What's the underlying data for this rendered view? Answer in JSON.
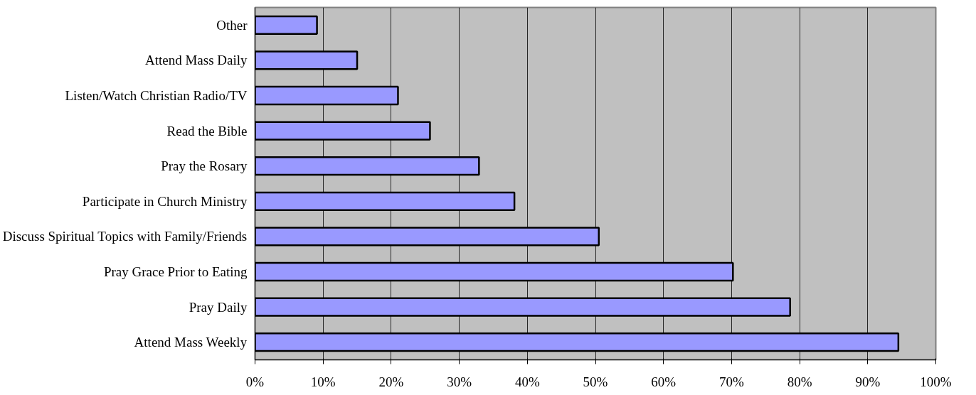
{
  "chart_data": {
    "type": "bar",
    "orientation": "horizontal",
    "categories": [
      "Other",
      "Attend Mass Daily",
      "Listen/Watch Christian Radio/TV",
      "Read the Bible",
      "Pray the Rosary",
      "Participate in Church Ministry",
      "Discuss Spiritual Topics with Family/Friends",
      "Pray Grace Prior to Eating",
      "Pray Daily",
      "Attend Mass Weekly"
    ],
    "values": [
      9.1,
      15.0,
      21.0,
      25.7,
      32.9,
      38.1,
      50.5,
      70.2,
      78.6,
      94.5
    ],
    "color": "#9999ff",
    "xlim": [
      0,
      100
    ],
    "xticks": [
      {
        "value": 0,
        "label": "0%"
      },
      {
        "value": 10,
        "label": "10%"
      },
      {
        "value": 20,
        "label": "20%"
      },
      {
        "value": 30,
        "label": "30%"
      },
      {
        "value": 40,
        "label": "40%"
      },
      {
        "value": 50,
        "label": "50%"
      },
      {
        "value": 60,
        "label": "60%"
      },
      {
        "value": 70,
        "label": "70%"
      },
      {
        "value": 80,
        "label": "80%"
      },
      {
        "value": 90,
        "label": "90%"
      },
      {
        "value": 100,
        "label": "100%"
      }
    ],
    "grid": "x"
  }
}
